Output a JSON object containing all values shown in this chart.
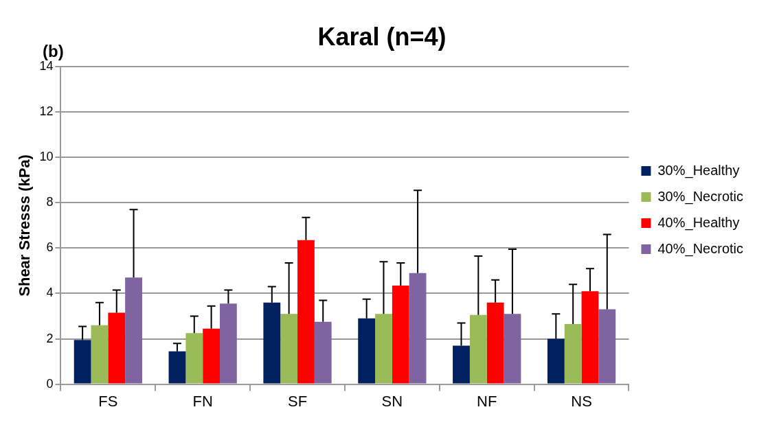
{
  "chart_data": {
    "type": "bar",
    "title": "Karal (n=4)",
    "ylabel": "Shear Stresss (kPa)",
    "annotations": [
      "(b)"
    ],
    "categories": [
      "FS",
      "FN",
      "SF",
      "SN",
      "NF",
      "NS"
    ],
    "series": [
      {
        "name": "30%_Healthy",
        "color": "#002060",
        "values": [
          1.95,
          1.45,
          3.6,
          2.9,
          1.7,
          2.0
        ],
        "errors": [
          0.6,
          0.35,
          0.7,
          0.85,
          1.0,
          1.1
        ]
      },
      {
        "name": "30%_Necrotic",
        "color": "#9bbb59",
        "values": [
          2.6,
          2.25,
          3.1,
          3.1,
          3.05,
          2.65
        ],
        "errors": [
          1.0,
          0.75,
          2.25,
          2.3,
          2.6,
          1.75
        ]
      },
      {
        "name": "40%_Healthy",
        "color": "#ff0000",
        "values": [
          3.15,
          2.45,
          6.35,
          4.35,
          3.6,
          4.1
        ],
        "errors": [
          1.0,
          1.0,
          1.0,
          1.0,
          1.0,
          1.0
        ]
      },
      {
        "name": "40%_Necrotic",
        "color": "#8064a2",
        "values": [
          4.7,
          3.55,
          2.75,
          4.9,
          3.1,
          3.3
        ],
        "errors": [
          3.0,
          0.6,
          0.95,
          3.65,
          2.85,
          3.3
        ]
      }
    ],
    "ylim": [
      0,
      14
    ],
    "yticks": [
      0,
      2,
      4,
      6,
      8,
      10,
      12,
      14
    ],
    "grid": "y",
    "legend": "right"
  }
}
